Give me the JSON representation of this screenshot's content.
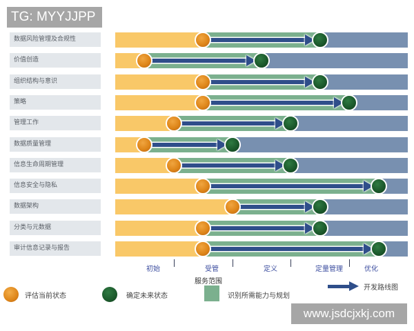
{
  "watermark_top": "TG: MYYJJPP",
  "watermark_bottom": "www.jsdcjxkj.com",
  "colors": {
    "current_state_fill": "#f9c868",
    "capability_band": "#7bb08e",
    "remaining": "#7890b0",
    "roadmap_arrow": "#2f4e8a",
    "current_state_dot": "#de861a",
    "future_state_dot": "#1c5a2c"
  },
  "stages": [
    "初始",
    "受管",
    "定义",
    "定量管理",
    "优化"
  ],
  "scope_label": "服务范围",
  "legend": {
    "current": "评估当前状态",
    "future": "确定未来状态",
    "capability": "识别所需能力与规划",
    "roadmap": "开发路线图"
  },
  "chart_data": {
    "type": "table",
    "title": "",
    "xlabel": "服务范围",
    "stages": [
      "初始",
      "受管",
      "定义",
      "定量管理",
      "优化"
    ],
    "stage_scale_note": "positions in stage units: 0 = start of 初始, 5 = end of 优化; 0.5 = middle of 初始, 1.0 = boundary 初始/受管",
    "rows": [
      {
        "label": "数据风险管理及合规性",
        "current": 1.5,
        "future": 3.5
      },
      {
        "label": "价值创造",
        "current": 0.5,
        "future": 2.5
      },
      {
        "label": "组织结构与意识",
        "current": 1.5,
        "future": 3.5
      },
      {
        "label": "策略",
        "current": 1.5,
        "future": 4.0
      },
      {
        "label": "管理工作",
        "current": 1.0,
        "future": 3.0
      },
      {
        "label": "数据质量管理",
        "current": 0.5,
        "future": 2.0
      },
      {
        "label": "信息生命周期管理",
        "current": 1.0,
        "future": 3.0
      },
      {
        "label": "信息安全与隐私",
        "current": 1.5,
        "future": 4.5
      },
      {
        "label": "数据架构",
        "current": 2.0,
        "future": 3.5
      },
      {
        "label": "分类与元数据",
        "current": 1.5,
        "future": 3.5
      },
      {
        "label": "审计信息记录与报告",
        "current": 1.5,
        "future": 4.5
      }
    ]
  }
}
